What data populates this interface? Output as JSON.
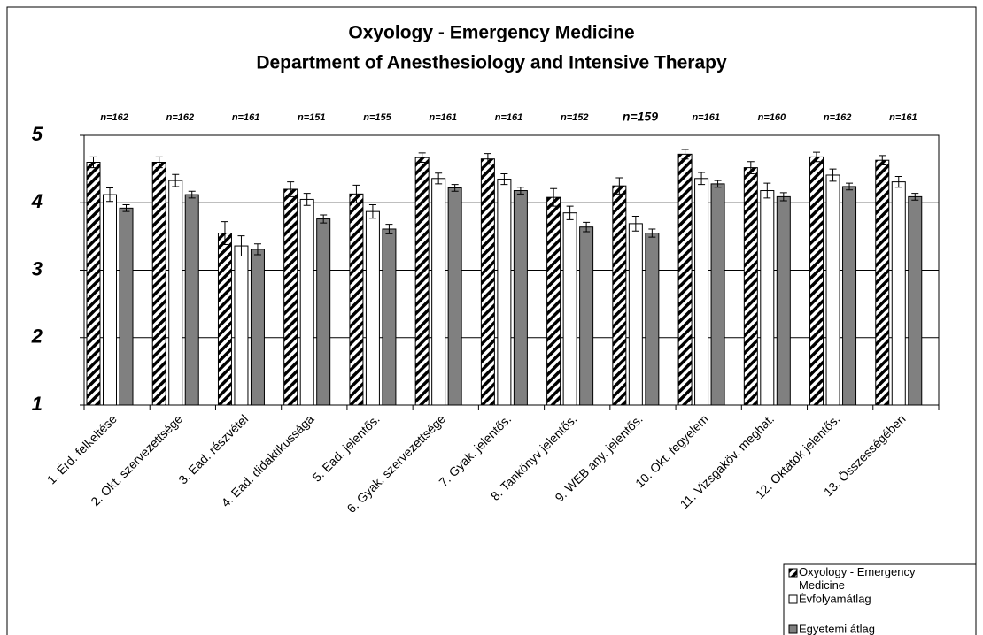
{
  "chart_data": {
    "type": "bar",
    "title": [
      "Oxyology - Emergency Medicine",
      "Department of Anesthesiology and Intensive Therapy"
    ],
    "categories": [
      "1. Érd. felkeltése",
      "2. Okt. szervezettsége",
      "3. Ead. részvétel",
      "4. Ead. didaktikussága",
      "5. Ead. jelentős.",
      "6. Gyak. szervezettsége",
      "7. Gyak. jelentős.",
      "8. Tankönyv jelentős.",
      "9. WEB any. jelentős.",
      "10. Okt. fegyelem",
      "11. Vizsgaköv. meghat.",
      "12. Oktatók jelentős.",
      "13. Összességében"
    ],
    "annotations": [
      "n=162",
      "n=162",
      "n=161",
      "n=151",
      "n=155",
      "n=161",
      "n=161",
      "n=152",
      "n=159",
      "n=161",
      "n=160",
      "n=162",
      "n=161"
    ],
    "series": [
      {
        "name": "Oxyology - Emergency Medicine",
        "color": "#000000",
        "pattern": "hatch",
        "values": [
          4.6,
          4.6,
          3.55,
          4.2,
          4.13,
          4.67,
          4.65,
          4.08,
          4.25,
          4.72,
          4.52,
          4.68,
          4.63
        ],
        "errors": [
          0.08,
          0.08,
          0.17,
          0.11,
          0.13,
          0.07,
          0.08,
          0.13,
          0.12,
          0.07,
          0.09,
          0.07,
          0.07
        ]
      },
      {
        "name": "Évfolyamátlag",
        "color": "#ffffff",
        "values": [
          4.12,
          4.33,
          3.36,
          4.05,
          3.87,
          4.36,
          4.35,
          3.85,
          3.69,
          4.36,
          4.18,
          4.41,
          4.31
        ],
        "errors": [
          0.1,
          0.09,
          0.15,
          0.09,
          0.1,
          0.08,
          0.08,
          0.1,
          0.11,
          0.09,
          0.11,
          0.09,
          0.08
        ]
      },
      {
        "name": "Egyetemi átlag",
        "color": "#808080",
        "values": [
          3.92,
          4.12,
          3.31,
          3.76,
          3.61,
          4.22,
          4.18,
          3.64,
          3.55,
          4.28,
          4.09,
          4.24,
          4.09
        ],
        "errors": [
          0.05,
          0.05,
          0.08,
          0.06,
          0.07,
          0.05,
          0.05,
          0.07,
          0.06,
          0.05,
          0.06,
          0.05,
          0.05
        ]
      }
    ],
    "ylim": [
      1,
      5
    ],
    "yticks": [
      1,
      2,
      3,
      4,
      5
    ],
    "grid": true,
    "legend": "bottom-right"
  }
}
